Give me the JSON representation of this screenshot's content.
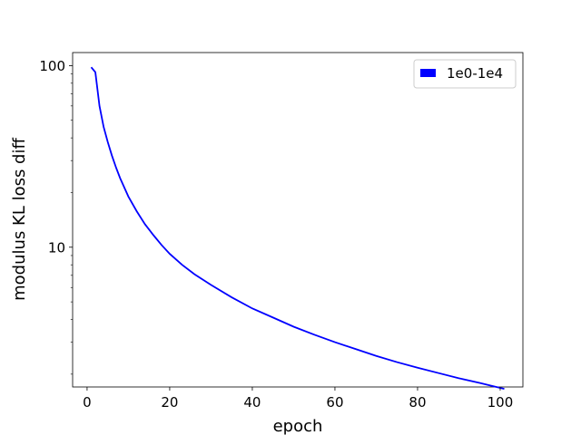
{
  "chart_data": {
    "type": "line",
    "title": "",
    "xlabel": "epoch",
    "ylabel": "modulus KL loss diff",
    "xlim": [
      -3.5,
      105.5
    ],
    "ylim": [
      1.7,
      118
    ],
    "yscale": "log",
    "x_ticks": [
      0,
      20,
      40,
      60,
      80,
      100
    ],
    "y_ticks": [
      10,
      100
    ],
    "y_tick_labels": [
      "10",
      "100"
    ],
    "grid": false,
    "legend": {
      "position": "top-right",
      "entries": [
        "1e0-1e4"
      ]
    },
    "series": [
      {
        "name": "1e0-1e4",
        "color": "#0000ff",
        "x": [
          1,
          2,
          3,
          4,
          5,
          6,
          7,
          8,
          10,
          12,
          14,
          16,
          18,
          20,
          23,
          26,
          30,
          35,
          40,
          45,
          50,
          55,
          60,
          65,
          70,
          75,
          80,
          85,
          90,
          95,
          101
        ],
        "y": [
          98,
          92,
          60,
          46,
          38,
          32,
          27.5,
          24,
          19,
          15.8,
          13.4,
          11.7,
          10.3,
          9.2,
          8.0,
          7.1,
          6.2,
          5.3,
          4.6,
          4.1,
          3.65,
          3.3,
          3.0,
          2.75,
          2.52,
          2.33,
          2.17,
          2.03,
          1.9,
          1.79,
          1.66
        ]
      }
    ]
  }
}
